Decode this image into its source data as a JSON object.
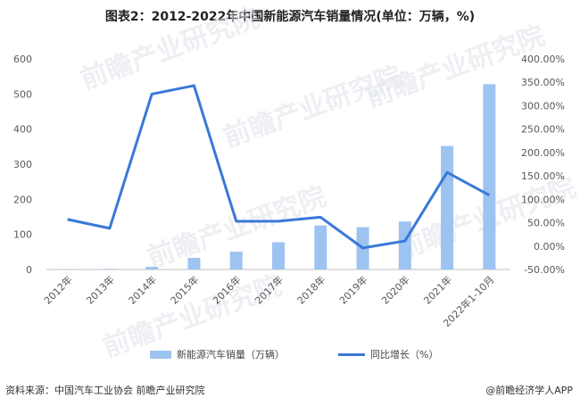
{
  "chart_data": {
    "type": "bar+line",
    "title": "图表2：2012-2022年中国新能源汽车销量情况(单位：万辆，%)",
    "categories": [
      "2012年",
      "2013年",
      "2014年",
      "2015年",
      "2016年",
      "2017年",
      "2018年",
      "2019年",
      "2020年",
      "2021年",
      "2022年1-10月"
    ],
    "series": [
      {
        "name": "新能源汽车销量（万辆）",
        "type": "bar",
        "axis": "left",
        "color": "#9DC3F0",
        "values": [
          1.28,
          1.76,
          7.48,
          33.1,
          50.7,
          77.7,
          125.6,
          120.6,
          136.7,
          352.1,
          528.0
        ]
      },
      {
        "name": "同比增长（%）",
        "type": "line",
        "axis": "right",
        "color": "#3A78D8",
        "values": [
          57.0,
          37.9,
          324.8,
          342.9,
          53.0,
          53.3,
          61.7,
          -4.0,
          10.9,
          157.5,
          108.7
        ]
      }
    ],
    "y_left": {
      "min": 0,
      "max": 600,
      "ticks": [
        "0",
        "100",
        "200",
        "300",
        "400",
        "500",
        "600"
      ]
    },
    "y_right": {
      "min": -50,
      "max": 400,
      "ticks": [
        "-50.00%",
        "0.00%",
        "50.00%",
        "100.00%",
        "150.00%",
        "200.00%",
        "250.00%",
        "300.00%",
        "350.00%",
        "400.00%"
      ]
    },
    "grid": false,
    "legend_position": "bottom"
  },
  "footer": {
    "source": "资料来源：中国汽车工业协会 前瞻产业研究院",
    "credit": "@前瞻经济学人APP"
  },
  "watermark": "前瞻产业研究院"
}
